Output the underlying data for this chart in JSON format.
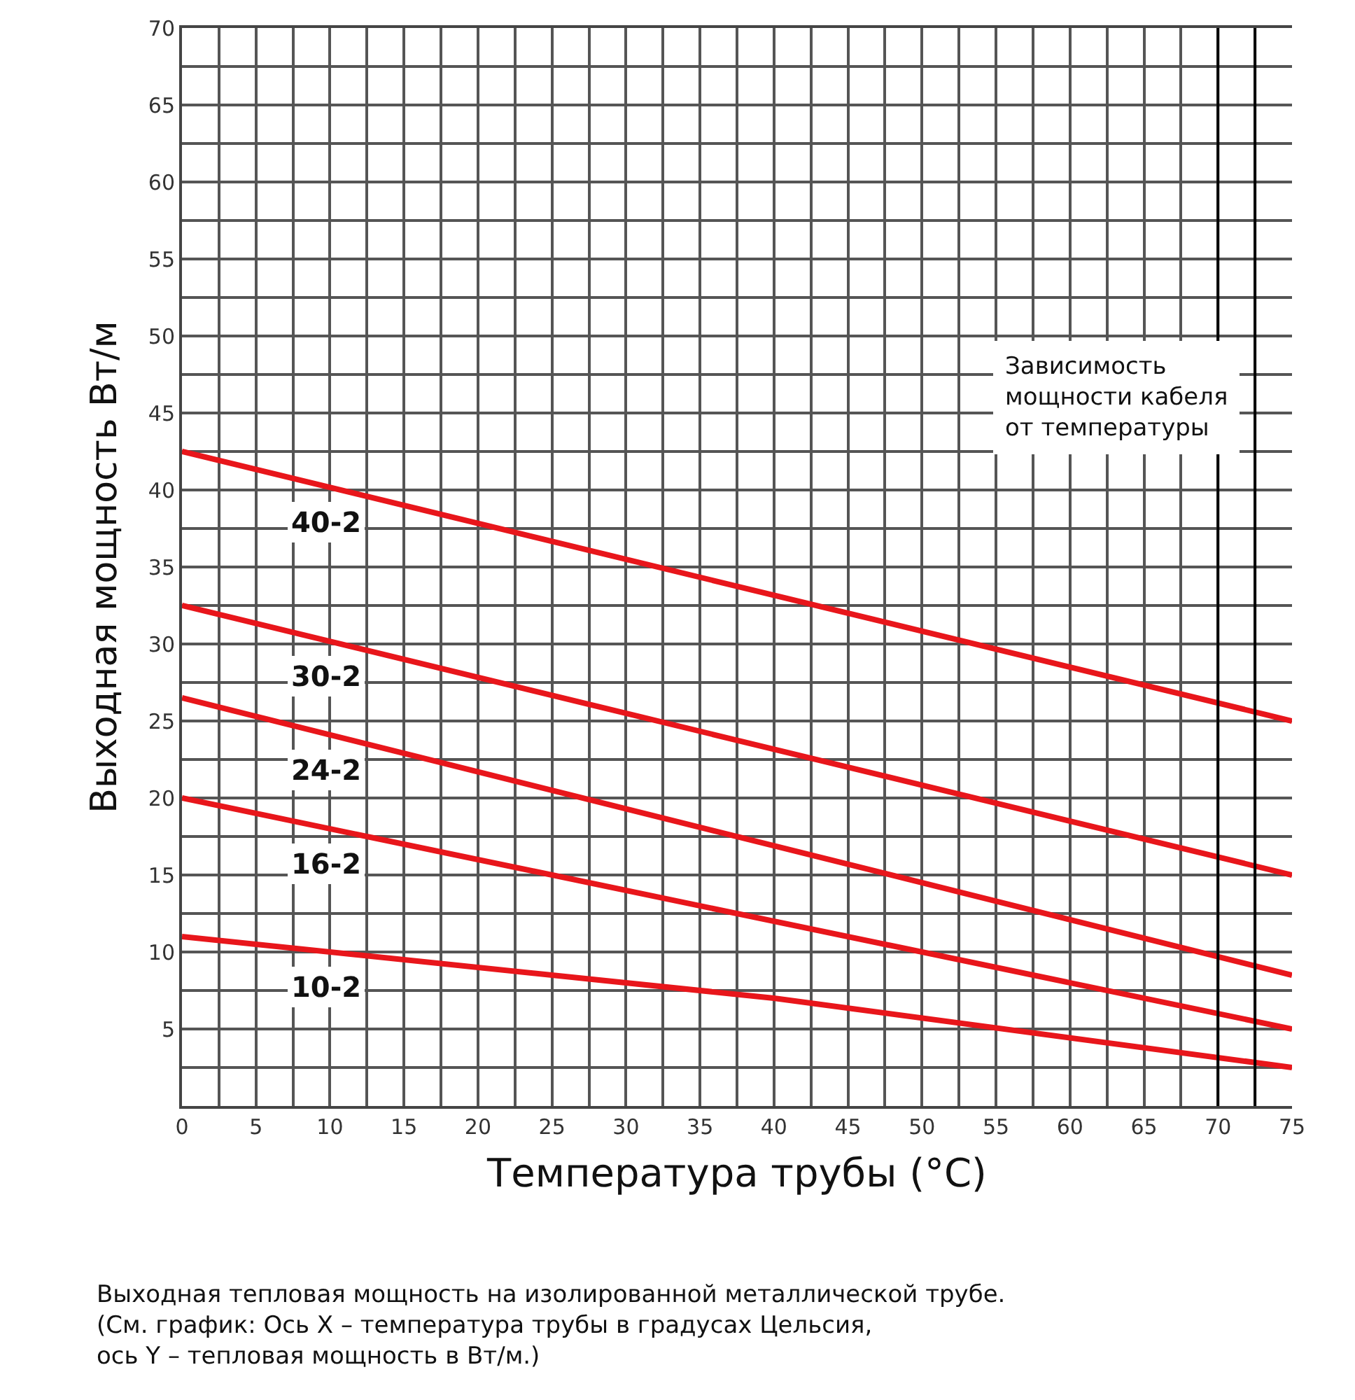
{
  "chart_data": {
    "type": "line",
    "xlabel": "Температура трубы (°C)",
    "ylabel": "Выходная мощность Вт/м",
    "xlim": [
      0,
      75
    ],
    "ylim": [
      0,
      70
    ],
    "xticks": [
      0,
      5,
      10,
      15,
      20,
      25,
      30,
      35,
      40,
      45,
      50,
      55,
      60,
      65,
      70,
      75
    ],
    "yticks": [
      {
        "value": 0,
        "label": null
      },
      5,
      10,
      15,
      20,
      25,
      30,
      35,
      40,
      45,
      50,
      55,
      60,
      65,
      70
    ],
    "grid": true,
    "legend": false,
    "marker": "none",
    "line_style": "solid",
    "series": [
      {
        "name": "40-2",
        "color": "#e8161b",
        "x": [
          0,
          75
        ],
        "values": [
          42.5,
          25
        ]
      },
      {
        "name": "30-2",
        "color": "#e8161b",
        "x": [
          0,
          75
        ],
        "values": [
          32.5,
          15
        ]
      },
      {
        "name": "24-2",
        "color": "#e8161b",
        "x": [
          0,
          75
        ],
        "values": [
          26.5,
          8.5
        ]
      },
      {
        "name": "16-2",
        "color": "#e8161b",
        "x": [
          0,
          75
        ],
        "values": [
          20,
          5
        ]
      },
      {
        "name": "10-2",
        "color": "#e8161b",
        "x": [
          0,
          40,
          75
        ],
        "values": [
          11,
          7,
          2.5
        ]
      }
    ],
    "ref_lines": [
      {
        "axis": "x",
        "value": 70,
        "color": "#000000"
      },
      {
        "axis": "x",
        "value": 72.5,
        "color": "#000000"
      }
    ],
    "annotations": [
      "Зависимость\nмощности кабеля\nот температуры",
      "Выходная тепловая мощность на изолированной металлической трубе.\n(См. график: Ось X – температура трубы в градусах Цельсия,\nось Y – тепловая мощность в Вт/м.)"
    ]
  }
}
